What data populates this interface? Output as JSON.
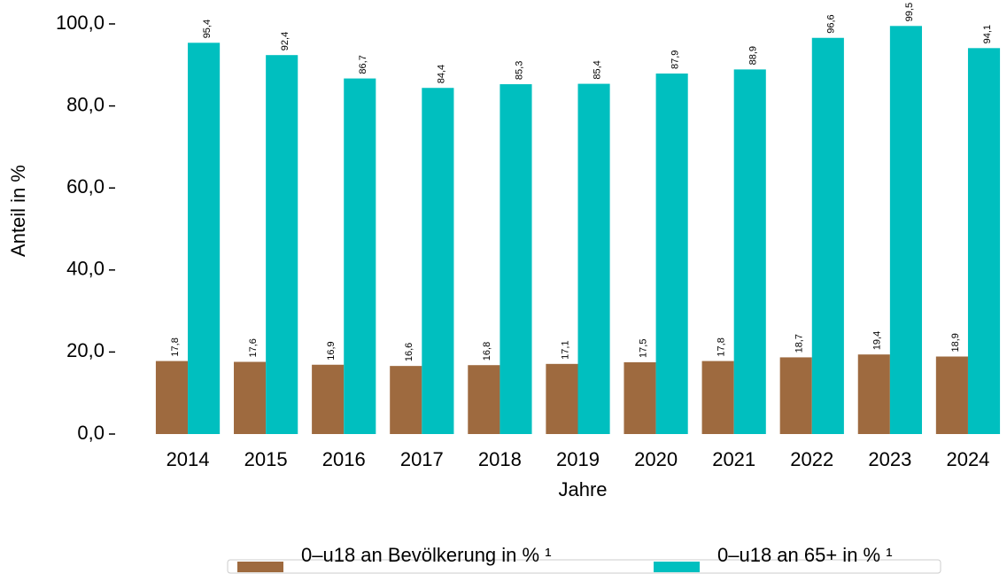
{
  "chart_data": {
    "type": "bar",
    "x_label": "Jahre",
    "y_label": "Anteil in %",
    "categories": [
      "2014",
      "2015",
      "2016",
      "2017",
      "2018",
      "2019",
      "2020",
      "2021",
      "2022",
      "2023",
      "2024"
    ],
    "series": [
      {
        "name": "0–u18 an Bevölkerung in % ¹",
        "color": "#9e6a3f",
        "values": [
          17.8,
          17.6,
          16.9,
          16.6,
          16.8,
          17.1,
          17.5,
          17.8,
          18.7,
          19.4,
          18.9
        ],
        "value_labels": [
          "17,8",
          "17,6",
          "16,9",
          "16,6",
          "16,8",
          "17,1",
          "17,5",
          "17,8",
          "18,7",
          "19,4",
          "18,9"
        ]
      },
      {
        "name": "0–u18 an 65+ in % ¹",
        "color": "#00bfbf",
        "values": [
          95.4,
          92.4,
          86.7,
          84.4,
          85.3,
          85.4,
          87.9,
          88.9,
          96.6,
          99.5,
          94.1
        ],
        "value_labels": [
          "95,4",
          "92,4",
          "86,7",
          "84,4",
          "85,3",
          "85,4",
          "87,9",
          "88,9",
          "96,6",
          "99,5",
          "94,1"
        ]
      }
    ],
    "ylim": [
      0,
      100
    ],
    "yticks": [
      {
        "value": 0,
        "label": "0,0"
      },
      {
        "value": 20,
        "label": "20,0"
      },
      {
        "value": 40,
        "label": "40,0"
      },
      {
        "value": 60,
        "label": "60,0"
      },
      {
        "value": 80,
        "label": "80,0"
      },
      {
        "value": 100,
        "label": "100,0"
      }
    ],
    "legend": "bottom"
  }
}
